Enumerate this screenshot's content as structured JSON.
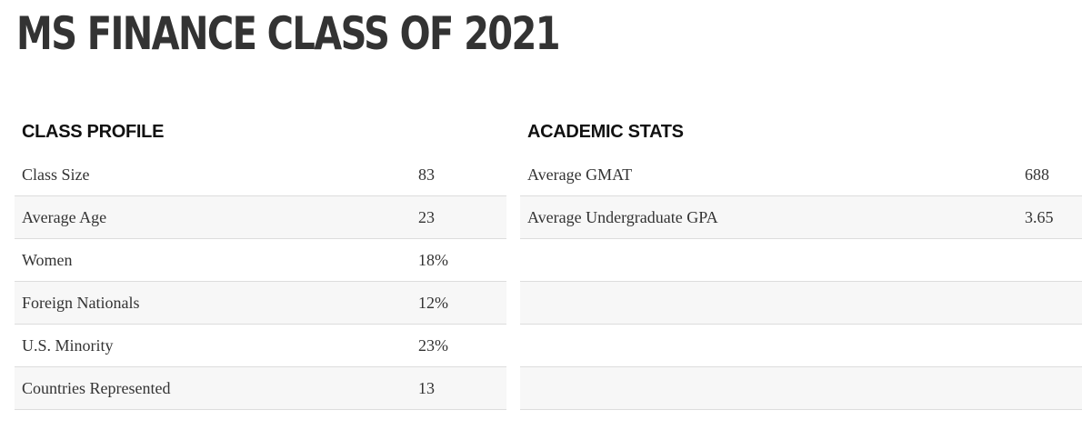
{
  "page": {
    "title": "MS FINANCE CLASS OF 2021"
  },
  "class_profile": {
    "heading": "CLASS PROFILE",
    "rows": [
      {
        "label": "Class Size",
        "value": "83"
      },
      {
        "label": "Average Age",
        "value": "23"
      },
      {
        "label": "Women",
        "value": "18%"
      },
      {
        "label": "Foreign Nationals",
        "value": "12%"
      },
      {
        "label": "U.S. Minority",
        "value": "23%"
      },
      {
        "label": "Countries Represented",
        "value": "13"
      }
    ]
  },
  "academic_stats": {
    "heading": "ACADEMIC STATS",
    "rows": [
      {
        "label": "Average GMAT",
        "value": "688"
      },
      {
        "label": "Average Undergraduate GPA",
        "value": "3.65"
      }
    ]
  },
  "colors": {
    "text": "#333333",
    "heading": "#111111",
    "row_alt": "#f7f7f7",
    "divider": "#dddddd"
  }
}
